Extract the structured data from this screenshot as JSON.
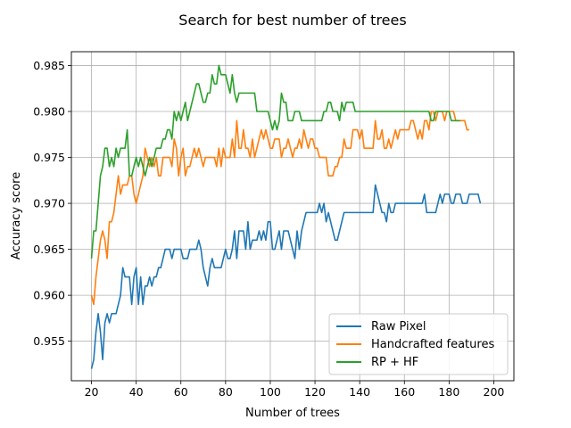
{
  "chart_data": {
    "type": "line",
    "title": "Search for best number of trees",
    "xlabel": "Number of trees",
    "ylabel": "Accuracy score",
    "xlim": [
      11,
      209
    ],
    "ylim": [
      0.9507,
      0.9865
    ],
    "xticks": [
      20,
      40,
      60,
      80,
      100,
      120,
      140,
      160,
      180,
      200
    ],
    "yticks": [
      0.955,
      0.96,
      0.965,
      0.97,
      0.975,
      0.98,
      0.985
    ],
    "ytick_labels": [
      "0.955",
      "0.960",
      "0.965",
      "0.970",
      "0.975",
      "0.980",
      "0.985"
    ],
    "grid": true,
    "legend_position": "lower-right",
    "x_start": 20,
    "x_step": 1,
    "series": [
      {
        "name": "Raw Pixel",
        "color": "#1f77b4",
        "values": [
          0.952,
          0.953,
          0.956,
          0.958,
          0.956,
          0.953,
          0.957,
          0.958,
          0.957,
          0.958,
          0.958,
          0.958,
          0.959,
          0.96,
          0.963,
          0.962,
          0.962,
          0.962,
          0.959,
          0.962,
          0.963,
          0.959,
          0.962,
          0.959,
          0.961,
          0.961,
          0.962,
          0.961,
          0.962,
          0.962,
          0.963,
          0.963,
          0.964,
          0.965,
          0.965,
          0.965,
          0.964,
          0.965,
          0.965,
          0.965,
          0.965,
          0.964,
          0.964,
          0.964,
          0.965,
          0.965,
          0.965,
          0.965,
          0.966,
          0.965,
          0.963,
          0.962,
          0.961,
          0.963,
          0.964,
          0.963,
          0.963,
          0.963,
          0.963,
          0.964,
          0.965,
          0.964,
          0.964,
          0.965,
          0.967,
          0.964,
          0.967,
          0.967,
          0.967,
          0.965,
          0.968,
          0.965,
          0.966,
          0.966,
          0.966,
          0.967,
          0.966,
          0.967,
          0.966,
          0.968,
          0.968,
          0.965,
          0.965,
          0.966,
          0.967,
          0.965,
          0.967,
          0.967,
          0.967,
          0.966,
          0.965,
          0.964,
          0.967,
          0.965,
          0.967,
          0.968,
          0.969,
          0.969,
          0.969,
          0.969,
          0.969,
          0.969,
          0.97,
          0.969,
          0.97,
          0.968,
          0.969,
          0.968,
          0.967,
          0.966,
          0.966,
          0.967,
          0.968,
          0.969,
          0.969,
          0.969,
          0.969,
          0.969,
          0.969,
          0.969,
          0.969,
          0.969,
          0.969,
          0.969,
          0.969,
          0.969,
          0.969,
          0.972,
          0.971,
          0.97,
          0.969,
          0.969,
          0.968,
          0.97,
          0.969,
          0.969,
          0.97,
          0.97,
          0.97,
          0.97,
          0.97,
          0.97,
          0.97,
          0.97,
          0.97,
          0.97,
          0.97,
          0.97,
          0.97,
          0.971,
          0.969,
          0.969,
          0.969,
          0.969,
          0.969,
          0.97,
          0.971,
          0.97,
          0.971,
          0.971,
          0.971,
          0.97,
          0.97,
          0.971,
          0.971,
          0.971,
          0.97,
          0.97,
          0.97,
          0.971,
          0.971,
          0.971,
          0.971,
          0.971,
          0.97
        ]
      },
      {
        "name": "Handcrafted features",
        "color": "#ff7f0e",
        "values": [
          0.96,
          0.959,
          0.962,
          0.964,
          0.966,
          0.967,
          0.966,
          0.964,
          0.968,
          0.968,
          0.969,
          0.971,
          0.973,
          0.971,
          0.972,
          0.972,
          0.972,
          0.973,
          0.973,
          0.971,
          0.97,
          0.971,
          0.972,
          0.973,
          0.976,
          0.975,
          0.974,
          0.975,
          0.974,
          0.975,
          0.973,
          0.973,
          0.975,
          0.975,
          0.975,
          0.975,
          0.974,
          0.977,
          0.976,
          0.973,
          0.975,
          0.976,
          0.973,
          0.974,
          0.974,
          0.975,
          0.976,
          0.975,
          0.976,
          0.975,
          0.974,
          0.975,
          0.975,
          0.975,
          0.975,
          0.975,
          0.974,
          0.976,
          0.974,
          0.976,
          0.975,
          0.975,
          0.975,
          0.977,
          0.975,
          0.979,
          0.976,
          0.976,
          0.978,
          0.976,
          0.976,
          0.975,
          0.977,
          0.975,
          0.976,
          0.977,
          0.978,
          0.977,
          0.978,
          0.977,
          0.976,
          0.976,
          0.977,
          0.977,
          0.977,
          0.975,
          0.976,
          0.976,
          0.977,
          0.976,
          0.975,
          0.976,
          0.976,
          0.977,
          0.976,
          0.978,
          0.977,
          0.976,
          0.977,
          0.977,
          0.976,
          0.976,
          0.975,
          0.975,
          0.975,
          0.975,
          0.973,
          0.973,
          0.973,
          0.974,
          0.974,
          0.975,
          0.975,
          0.977,
          0.976,
          0.976,
          0.976,
          0.978,
          0.978,
          0.978,
          0.977,
          0.978,
          0.976,
          0.976,
          0.976,
          0.976,
          0.976,
          0.979,
          0.977,
          0.977,
          0.978,
          0.976,
          0.976,
          0.977,
          0.976,
          0.977,
          0.978,
          0.977,
          0.978,
          0.978,
          0.978,
          0.978,
          0.978,
          0.979,
          0.979,
          0.978,
          0.977,
          0.978,
          0.977,
          0.979,
          0.979,
          0.978,
          0.98,
          0.98,
          0.979,
          0.98,
          0.98,
          0.98,
          0.979,
          0.98,
          0.98,
          0.98,
          0.98,
          0.979,
          0.979,
          0.979,
          0.979,
          0.979,
          0.978,
          0.978
        ]
      },
      {
        "name": "RP + HF",
        "color": "#2ca02c",
        "values": [
          0.964,
          0.967,
          0.967,
          0.97,
          0.973,
          0.974,
          0.976,
          0.976,
          0.974,
          0.975,
          0.974,
          0.976,
          0.975,
          0.976,
          0.976,
          0.976,
          0.978,
          0.973,
          0.973,
          0.974,
          0.975,
          0.974,
          0.975,
          0.974,
          0.973,
          0.974,
          0.975,
          0.974,
          0.975,
          0.976,
          0.976,
          0.976,
          0.977,
          0.977,
          0.978,
          0.978,
          0.977,
          0.98,
          0.979,
          0.98,
          0.979,
          0.98,
          0.981,
          0.979,
          0.98,
          0.981,
          0.982,
          0.983,
          0.983,
          0.982,
          0.981,
          0.981,
          0.982,
          0.982,
          0.984,
          0.983,
          0.983,
          0.985,
          0.984,
          0.984,
          0.984,
          0.983,
          0.982,
          0.984,
          0.982,
          0.981,
          0.982,
          0.982,
          0.982,
          0.982,
          0.982,
          0.982,
          0.982,
          0.982,
          0.98,
          0.98,
          0.98,
          0.98,
          0.98,
          0.98,
          0.979,
          0.978,
          0.979,
          0.978,
          0.979,
          0.982,
          0.981,
          0.981,
          0.979,
          0.979,
          0.979,
          0.98,
          0.98,
          0.98,
          0.979,
          0.979,
          0.979,
          0.979,
          0.979,
          0.979,
          0.979,
          0.979,
          0.979,
          0.979,
          0.98,
          0.98,
          0.981,
          0.981,
          0.98,
          0.98,
          0.98,
          0.979,
          0.981,
          0.98,
          0.981,
          0.981,
          0.981,
          0.981,
          0.98,
          0.98,
          0.98,
          0.98,
          0.98,
          0.98,
          0.98,
          0.98,
          0.98,
          0.98,
          0.98,
          0.98,
          0.98,
          0.98,
          0.98,
          0.98,
          0.98,
          0.98,
          0.98,
          0.98,
          0.98,
          0.98,
          0.98,
          0.98,
          0.98,
          0.98,
          0.98,
          0.98,
          0.98,
          0.98,
          0.98,
          0.98,
          0.98,
          0.98,
          0.979,
          0.979,
          0.98,
          0.98,
          0.98,
          0.98,
          0.98,
          0.98,
          0.98,
          0.979,
          0.979,
          0.979,
          0.979,
          0.979
        ]
      }
    ]
  }
}
